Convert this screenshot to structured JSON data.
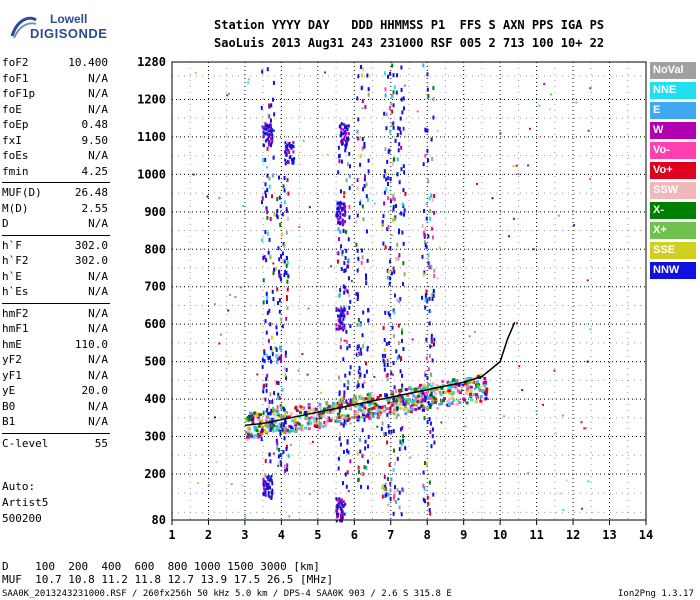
{
  "logo": {
    "top": "Lowell",
    "bottom": "DIGISONDE"
  },
  "header": {
    "line1": "Station YYYY DAY   DDD HHMMSS P1  FFS S AXN PPS IGA PS",
    "line2": "SaoLuis 2013 Aug31 243 231000 RSF 005 2 713 100 10+ 22"
  },
  "params_groups": [
    [
      {
        "name": "foF2",
        "value": "10.400"
      },
      {
        "name": "foF1",
        "value": "N/A"
      },
      {
        "name": "foF1p",
        "value": "N/A"
      },
      {
        "name": "foE",
        "value": "N/A"
      },
      {
        "name": "foEp",
        "value": "0.48"
      },
      {
        "name": "fxI",
        "value": "9.50"
      },
      {
        "name": "foEs",
        "value": "N/A"
      },
      {
        "name": "fmin",
        "value": "4.25"
      }
    ],
    [
      {
        "name": "MUF(D)",
        "value": "26.48"
      },
      {
        "name": "M(D)",
        "value": "2.55"
      },
      {
        "name": "D",
        "value": "N/A"
      }
    ],
    [
      {
        "name": "h`F",
        "value": "302.0"
      },
      {
        "name": "h`F2",
        "value": "302.0"
      },
      {
        "name": "h`E",
        "value": "N/A"
      },
      {
        "name": "h`Es",
        "value": "N/A"
      }
    ],
    [
      {
        "name": "hmF2",
        "value": "N/A"
      },
      {
        "name": "hmF1",
        "value": "N/A"
      },
      {
        "name": "hmE",
        "value": "110.0"
      },
      {
        "name": "yF2",
        "value": "N/A"
      },
      {
        "name": "yF1",
        "value": "N/A"
      },
      {
        "name": "yE",
        "value": "20.0"
      },
      {
        "name": "B0",
        "value": "N/A"
      },
      {
        "name": "B1",
        "value": "N/A"
      }
    ],
    [
      {
        "name": "C-level",
        "value": "55"
      }
    ]
  ],
  "auto_lines": [
    "Auto:",
    "Artist5",
    "500200"
  ],
  "legend": [
    {
      "label": "NoVal",
      "color": "#a0a0a0"
    },
    {
      "label": "NNE",
      "color": "#20e0f0"
    },
    {
      "label": "E",
      "color": "#40a8f0"
    },
    {
      "label": "W",
      "color": "#b000b0"
    },
    {
      "label": "Vo-",
      "color": "#ff40b0"
    },
    {
      "label": "Vo+",
      "color": "#e00020"
    },
    {
      "label": "SSW",
      "color": "#f0b8b8"
    },
    {
      "label": "X-",
      "color": "#008000"
    },
    {
      "label": "X+",
      "color": "#70c050"
    },
    {
      "label": "SSE",
      "color": "#d0d020"
    },
    {
      "label": "NNW",
      "color": "#1010e0"
    }
  ],
  "footer": {
    "line1": "D    100  200  400  600  800 1000 1500 3000 [km]",
    "line2": "MUF  10.7 10.8 11.2 11.8 12.7 13.9 17.5 26.5 [MHz]",
    "file": "SAA0K_2013243231000.RSF / 260fx256h 50 kHz 5.0 km / DPS-4 SAA0K 903 / 2.6 S 315.8 E",
    "version": "Ion2Png 1.3.17"
  },
  "chart_data": {
    "type": "scatter",
    "x_ticks": [
      "1",
      "2",
      "3",
      "4",
      "5",
      "6",
      "7",
      "8",
      "9",
      "10",
      "11",
      "12",
      "13",
      "14"
    ],
    "y_ticks": [
      "80",
      "200",
      "300",
      "400",
      "500",
      "600",
      "700",
      "800",
      "900",
      "1000",
      "1100",
      "1200",
      "1280"
    ],
    "xlim": [
      1,
      14
    ],
    "ylim": [
      80,
      1280
    ],
    "y_scale": "nonlinear",
    "grid": true,
    "trace": {
      "x": [
        3.0,
        3.5,
        4.0,
        4.5,
        5.0,
        5.5,
        6.0,
        6.5,
        7.0,
        7.5,
        8.0,
        8.5,
        9.0,
        9.5,
        10.0,
        10.2,
        10.4
      ],
      "y": [
        330,
        335,
        345,
        355,
        365,
        375,
        385,
        395,
        405,
        415,
        425,
        435,
        445,
        460,
        500,
        560,
        605
      ]
    }
  }
}
